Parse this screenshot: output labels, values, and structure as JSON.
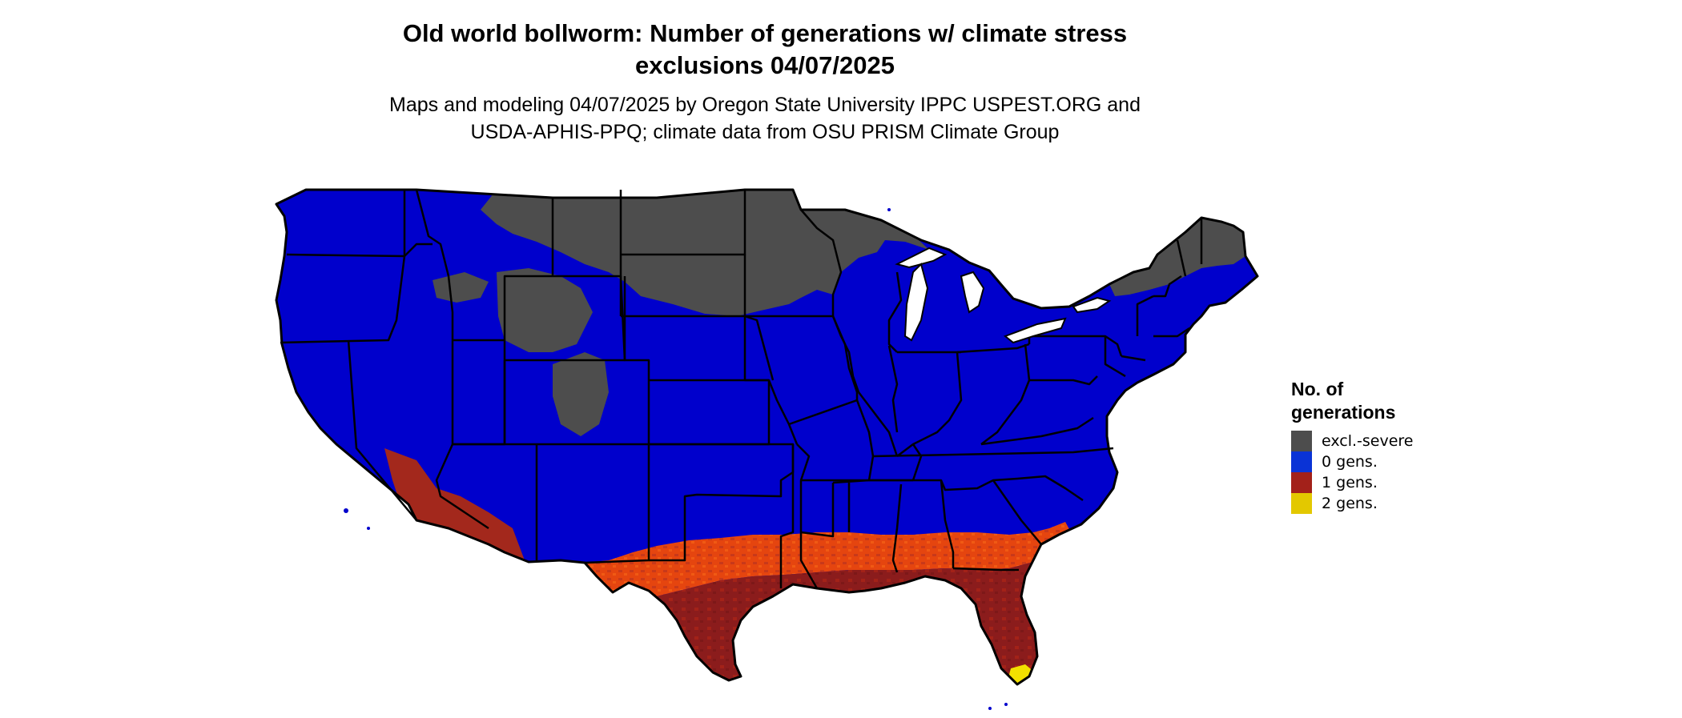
{
  "map": {
    "title_line1": "Old world bollworm: Number of generations w/ climate stress",
    "title_line2": "exclusions 04/07/2025",
    "subtitle_line1": "Maps and modeling 04/07/2025 by Oregon State University IPPC USPEST.ORG and",
    "subtitle_line2": "USDA-APHIS-PPQ; climate data from OSU PRISM Climate Group"
  },
  "legend": {
    "title_line1": "No. of",
    "title_line2": "generations",
    "items": [
      {
        "label": "excl.-severe",
        "color": "#4d4d4d"
      },
      {
        "label": "0 gens.",
        "color": "#0a33d6"
      },
      {
        "label": "1 gens.",
        "color": "#a3211a"
      },
      {
        "label": "2 gens.",
        "color": "#e3c800"
      }
    ]
  },
  "colors": {
    "zero_gens_fill": "#0000cc",
    "excl_severe_fill": "#4d4d4d",
    "one_gen_dark": "#8b1c1c",
    "one_gen_orange": "#e5450f",
    "two_gens_fill": "#f2e000",
    "border": "#000000"
  }
}
